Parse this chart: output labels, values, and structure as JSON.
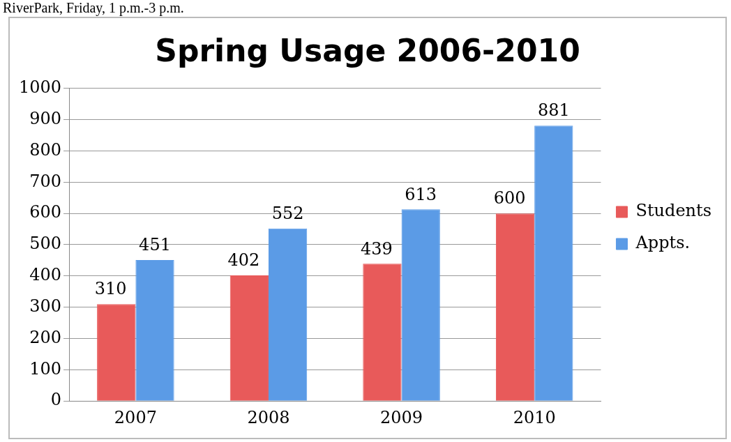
{
  "chart_data": {
    "type": "bar",
    "title": "Spring Usage 2006-2010",
    "annotations": [
      "RiverPark, Friday, 1 p.m.-3 p.m."
    ],
    "categories": [
      "2007",
      "2008",
      "2009",
      "2010"
    ],
    "series": [
      {
        "name": "Students",
        "color": "#e85a5a",
        "values": [
          310,
          402,
          439,
          600
        ]
      },
      {
        "name": "Appts.",
        "color": "#5b9be6",
        "values": [
          451,
          552,
          613,
          881
        ]
      }
    ],
    "ylim": [
      0,
      1000
    ],
    "yticks": [
      0,
      100,
      200,
      300,
      400,
      500,
      600,
      700,
      800,
      900,
      1000
    ],
    "grid": "y",
    "legend": "right",
    "data_labels": true
  }
}
